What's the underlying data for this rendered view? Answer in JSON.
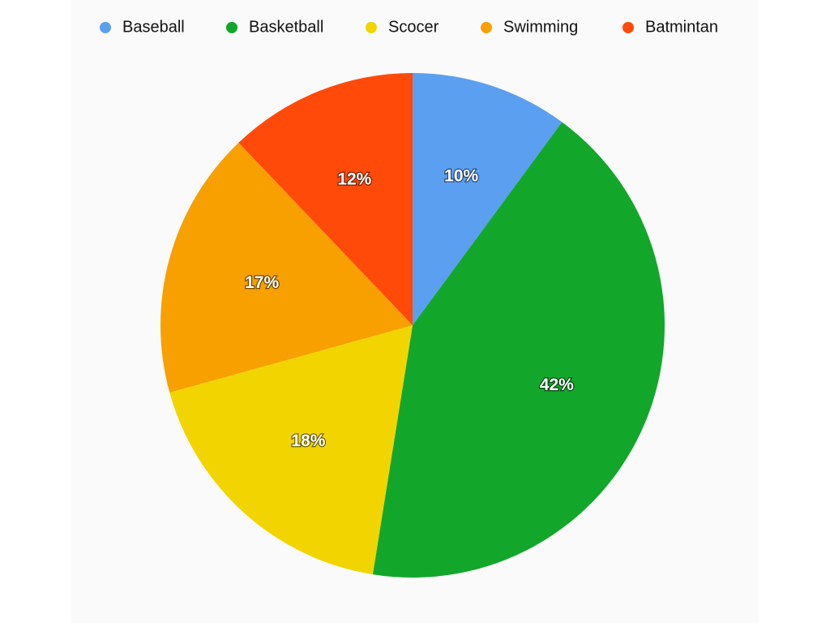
{
  "chart_data": {
    "type": "pie",
    "categories": [
      "Baseball",
      "Basketball",
      "Scocer",
      "Swimming",
      "Batmintan"
    ],
    "values": [
      10,
      42,
      18,
      17,
      12
    ],
    "value_labels": [
      "10%",
      "42%",
      "18%",
      "17%",
      "12%"
    ],
    "colors": [
      "#5b9ff0",
      "#12a72a",
      "#f2d500",
      "#f7a000",
      "#ff4a0a"
    ],
    "legend": "top"
  }
}
